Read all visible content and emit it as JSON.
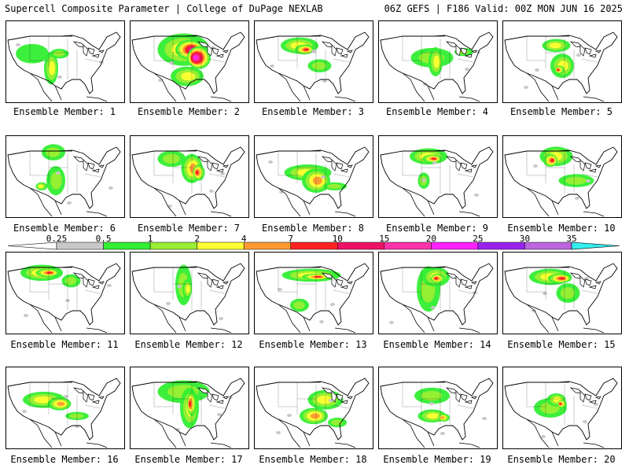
{
  "header": {
    "left": "Supercell Composite Parameter | College of DuPage NEXLAB",
    "right": "06Z GEFS | F186 Valid: 00Z MON JUN 16 2025"
  },
  "label_prefix": "Ensemble Member: ",
  "members": [
    1,
    2,
    3,
    4,
    5,
    6,
    7,
    8,
    9,
    10,
    11,
    12,
    13,
    14,
    15,
    16,
    17,
    18,
    19,
    20
  ],
  "colorbar": {
    "levels": [
      "0.25",
      "0.5",
      "1",
      "2",
      "4",
      "7",
      "10",
      "15",
      "20",
      "25",
      "30",
      "35"
    ],
    "colors": [
      "#c8c8c8",
      "#33ee33",
      "#9aee33",
      "#ffff33",
      "#ff9933",
      "#ff2222",
      "#ee1166",
      "#ff33aa",
      "#ff22ff",
      "#9922ee",
      "#bb66dd",
      "#33eeee"
    ]
  },
  "blobs": [
    [
      [
        0.22,
        0.4,
        0.14,
        0.12,
        1
      ],
      [
        0.38,
        0.58,
        0.06,
        0.2,
        3
      ],
      [
        0.45,
        0.4,
        0.08,
        0.06,
        2
      ]
    ],
    [
      [
        0.45,
        0.35,
        0.22,
        0.2,
        3
      ],
      [
        0.5,
        0.35,
        0.12,
        0.12,
        7
      ],
      [
        0.58,
        0.45,
        0.1,
        0.14,
        8
      ],
      [
        0.48,
        0.68,
        0.14,
        0.12,
        3
      ]
    ],
    [
      [
        0.38,
        0.3,
        0.16,
        0.1,
        3
      ],
      [
        0.42,
        0.35,
        0.08,
        0.06,
        5
      ],
      [
        0.55,
        0.55,
        0.1,
        0.08,
        2
      ]
    ],
    [
      [
        0.45,
        0.45,
        0.18,
        0.12,
        2
      ],
      [
        0.48,
        0.5,
        0.06,
        0.18,
        3
      ],
      [
        0.72,
        0.38,
        0.08,
        0.05,
        2
      ]
    ],
    [
      [
        0.45,
        0.3,
        0.12,
        0.08,
        3
      ],
      [
        0.5,
        0.55,
        0.1,
        0.15,
        3
      ],
      [
        0.48,
        0.6,
        0.04,
        0.05,
        5
      ]
    ],
    [
      [
        0.4,
        0.2,
        0.1,
        0.1,
        2
      ],
      [
        0.42,
        0.55,
        0.08,
        0.18,
        2
      ],
      [
        0.3,
        0.62,
        0.05,
        0.05,
        3
      ]
    ],
    [
      [
        0.35,
        0.28,
        0.12,
        0.1,
        2
      ],
      [
        0.52,
        0.4,
        0.09,
        0.18,
        4
      ],
      [
        0.58,
        0.45,
        0.05,
        0.1,
        5
      ]
    ],
    [
      [
        0.45,
        0.45,
        0.2,
        0.1,
        3
      ],
      [
        0.52,
        0.55,
        0.12,
        0.15,
        4
      ],
      [
        0.68,
        0.62,
        0.1,
        0.05,
        2
      ]
    ],
    [
      [
        0.42,
        0.25,
        0.16,
        0.1,
        3
      ],
      [
        0.45,
        0.28,
        0.08,
        0.05,
        5
      ],
      [
        0.38,
        0.55,
        0.05,
        0.1,
        2
      ]
    ],
    [
      [
        0.45,
        0.25,
        0.14,
        0.12,
        3
      ],
      [
        0.4,
        0.3,
        0.06,
        0.08,
        5
      ],
      [
        0.62,
        0.55,
        0.15,
        0.08,
        2
      ]
    ],
    [
      [
        0.3,
        0.25,
        0.18,
        0.1,
        3
      ],
      [
        0.35,
        0.25,
        0.1,
        0.05,
        5
      ],
      [
        0.55,
        0.35,
        0.08,
        0.08,
        2
      ]
    ],
    [
      [
        0.45,
        0.4,
        0.07,
        0.25,
        2
      ],
      [
        0.48,
        0.45,
        0.04,
        0.12,
        3
      ]
    ],
    [
      [
        0.48,
        0.28,
        0.25,
        0.08,
        3
      ],
      [
        0.52,
        0.3,
        0.12,
        0.04,
        5
      ],
      [
        0.38,
        0.65,
        0.08,
        0.08,
        2
      ]
    ],
    [
      [
        0.42,
        0.45,
        0.1,
        0.28,
        2
      ],
      [
        0.48,
        0.3,
        0.12,
        0.12,
        3
      ],
      [
        0.5,
        0.32,
        0.06,
        0.06,
        5
      ]
    ],
    [
      [
        0.4,
        0.3,
        0.18,
        0.1,
        3
      ],
      [
        0.48,
        0.32,
        0.1,
        0.06,
        5
      ],
      [
        0.55,
        0.5,
        0.1,
        0.12,
        2
      ]
    ],
    [
      [
        0.32,
        0.4,
        0.18,
        0.1,
        3
      ],
      [
        0.45,
        0.45,
        0.1,
        0.08,
        4
      ],
      [
        0.6,
        0.6,
        0.1,
        0.05,
        2
      ]
    ],
    [
      [
        0.45,
        0.3,
        0.22,
        0.14,
        2
      ],
      [
        0.5,
        0.5,
        0.08,
        0.25,
        3
      ],
      [
        0.52,
        0.45,
        0.04,
        0.15,
        5
      ]
    ],
    [
      [
        0.6,
        0.4,
        0.15,
        0.12,
        3
      ],
      [
        0.5,
        0.6,
        0.12,
        0.1,
        4
      ],
      [
        0.7,
        0.68,
        0.08,
        0.06,
        2
      ]
    ],
    [
      [
        0.45,
        0.35,
        0.15,
        0.1,
        2
      ],
      [
        0.45,
        0.6,
        0.12,
        0.08,
        3
      ],
      [
        0.55,
        0.62,
        0.05,
        0.05,
        4
      ]
    ],
    [
      [
        0.4,
        0.5,
        0.14,
        0.12,
        2
      ],
      [
        0.45,
        0.4,
        0.08,
        0.08,
        3
      ],
      [
        0.5,
        0.45,
        0.04,
        0.05,
        5
      ]
    ]
  ]
}
